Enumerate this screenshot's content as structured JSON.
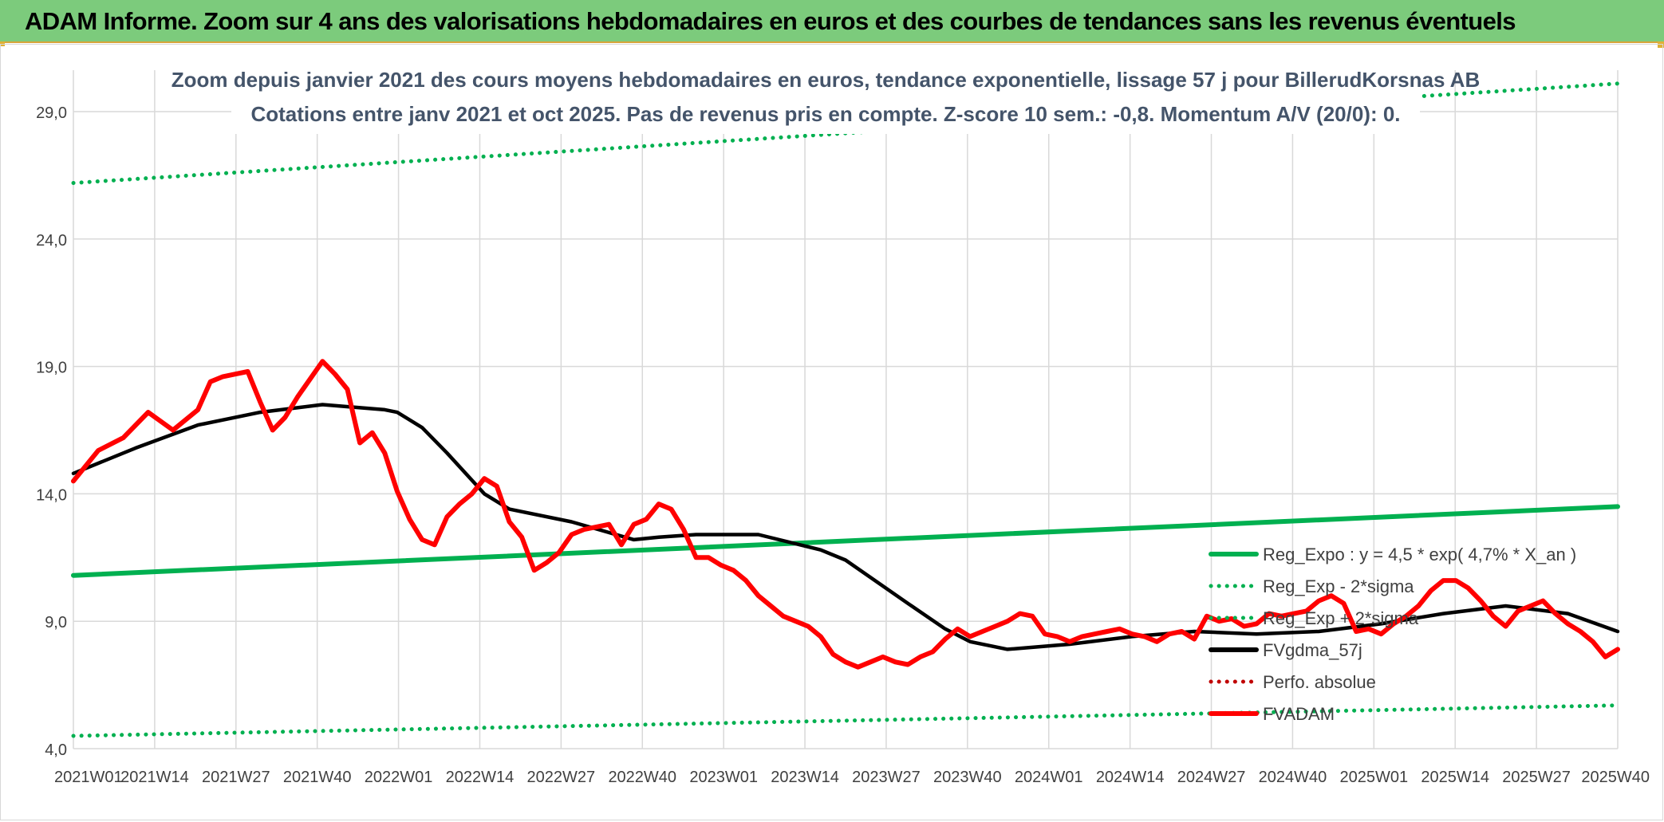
{
  "header": {
    "title": "ADAM Informe. Zoom sur 4 ans des valorisations hebdomadaires en euros et des courbes de tendances sans les revenus éventuels"
  },
  "colors": {
    "header_bg": "#7ccb7c",
    "trend": "#00b050",
    "fvgdma": "#000000",
    "fvadam": "#ff0000",
    "perfo": "#c00000",
    "grid": "#d9d9d9"
  },
  "chart_data": {
    "type": "line",
    "title": "Zoom depuis janvier 2021 des cours moyens hebdomadaires en euros, tendance exponentielle, lissage 57 j pour BillerudKorsnas AB",
    "subtitle": "Cotations entre janv 2021 et oct 2025. Pas de revenus pris en compte. Z-score 10 sem.: -0,8. Momentum A/V (20/0): 0.",
    "xlabel": "",
    "ylabel": "",
    "ylim": [
      4,
      30
    ],
    "yticks": [
      "4,0",
      "9,0",
      "14,0",
      "19,0",
      "24,0",
      "29,0"
    ],
    "ytick_values": [
      4,
      9,
      14,
      19,
      24,
      29
    ],
    "categories": [
      "2021W01",
      "2021W14",
      "2021W27",
      "2021W40",
      "2022W01",
      "2022W14",
      "2022W27",
      "2022W40",
      "2023W01",
      "2023W14",
      "2023W27",
      "2023W40",
      "2024W01",
      "2024W14",
      "2024W27",
      "2024W40",
      "2025W01",
      "2025W14",
      "2025W27",
      "2025W40"
    ],
    "x_range": [
      0,
      248
    ],
    "legend_position": "right",
    "series": [
      {
        "name": "Reg_Expo : y = 4,5 * exp( 4,7% *  X_an )",
        "style": "solid",
        "color": "#00b050",
        "x": [
          0,
          248
        ],
        "values": [
          10.8,
          13.5
        ]
      },
      {
        "name": "Reg_Exp - 2*sigma",
        "style": "dotted",
        "color": "#00b050",
        "x": [
          0,
          248
        ],
        "values": [
          4.5,
          5.7
        ]
      },
      {
        "name": "Reg_Exp + 2*sigma",
        "style": "dotted",
        "color": "#00b050",
        "x": [
          0,
          248
        ],
        "values": [
          26.2,
          30.1
        ]
      },
      {
        "name": "FVgdma_57j",
        "style": "solid",
        "color": "#000000",
        "x": [
          0,
          10,
          20,
          30,
          40,
          50,
          52,
          56,
          60,
          66,
          70,
          80,
          90,
          94,
          100,
          110,
          120,
          124,
          134,
          140,
          144,
          150,
          160,
          170,
          180,
          190,
          200,
          210,
          220,
          230,
          240,
          248
        ],
        "values": [
          14.8,
          15.8,
          16.7,
          17.2,
          17.5,
          17.3,
          17.2,
          16.6,
          15.6,
          14.0,
          13.4,
          12.9,
          12.2,
          12.3,
          12.4,
          12.4,
          11.8,
          11.4,
          9.7,
          8.7,
          8.2,
          7.9,
          8.1,
          8.4,
          8.6,
          8.5,
          8.6,
          8.9,
          9.3,
          9.6,
          9.3,
          8.6
        ]
      },
      {
        "name": "Perfo. absolue",
        "style": "dotted",
        "color": "#c00000",
        "x": [],
        "values": []
      },
      {
        "name": "FVADAM",
        "style": "solid",
        "color": "#ff0000",
        "x": [
          0,
          4,
          8,
          12,
          16,
          18,
          20,
          22,
          24,
          26,
          28,
          30,
          32,
          34,
          36,
          38,
          40,
          42,
          44,
          46,
          48,
          50,
          52,
          54,
          56,
          58,
          60,
          62,
          64,
          66,
          68,
          70,
          72,
          74,
          76,
          78,
          80,
          82,
          84,
          86,
          88,
          90,
          92,
          94,
          96,
          98,
          100,
          102,
          104,
          106,
          108,
          110,
          112,
          114,
          116,
          118,
          120,
          122,
          124,
          126,
          128,
          130,
          132,
          134,
          136,
          138,
          140,
          142,
          144,
          146,
          148,
          150,
          152,
          154,
          156,
          158,
          160,
          162,
          164,
          166,
          168,
          170,
          172,
          174,
          176,
          178,
          180,
          182,
          184,
          186,
          188,
          190,
          192,
          194,
          196,
          198,
          200,
          202,
          204,
          206,
          208,
          210,
          212,
          214,
          216,
          218,
          220,
          222,
          224,
          226,
          228,
          230,
          232,
          234,
          236,
          238,
          240,
          242,
          244,
          246,
          248
        ],
        "values": [
          14.5,
          15.7,
          16.2,
          17.2,
          16.5,
          16.9,
          17.3,
          18.4,
          18.6,
          18.7,
          18.8,
          17.6,
          16.5,
          17.0,
          17.8,
          18.5,
          19.2,
          18.7,
          18.1,
          16.0,
          16.4,
          15.6,
          14.1,
          13.0,
          12.2,
          12.0,
          13.1,
          13.6,
          14.0,
          14.6,
          14.3,
          12.9,
          12.3,
          11.0,
          11.3,
          11.7,
          12.4,
          12.6,
          12.7,
          12.8,
          12.0,
          12.8,
          13.0,
          13.6,
          13.4,
          12.6,
          11.5,
          11.5,
          11.2,
          11.0,
          10.6,
          10.0,
          9.6,
          9.2,
          9.0,
          8.8,
          8.4,
          7.7,
          7.4,
          7.2,
          7.4,
          7.6,
          7.4,
          7.3,
          7.6,
          7.8,
          8.3,
          8.7,
          8.4,
          8.6,
          8.8,
          9.0,
          9.3,
          9.2,
          8.5,
          8.4,
          8.2,
          8.4,
          8.5,
          8.6,
          8.7,
          8.5,
          8.4,
          8.2,
          8.5,
          8.6,
          8.3,
          9.2,
          9.0,
          9.1,
          8.8,
          8.9,
          9.3,
          9.2,
          9.3,
          9.4,
          9.8,
          10.0,
          9.7,
          8.6,
          8.7,
          8.5,
          8.9,
          9.2,
          9.6,
          10.2,
          10.6,
          10.6,
          10.3,
          9.8,
          9.2,
          8.8,
          9.4,
          9.6,
          9.8,
          9.3,
          8.9,
          8.6,
          8.2,
          7.6,
          7.9
        ]
      }
    ]
  }
}
